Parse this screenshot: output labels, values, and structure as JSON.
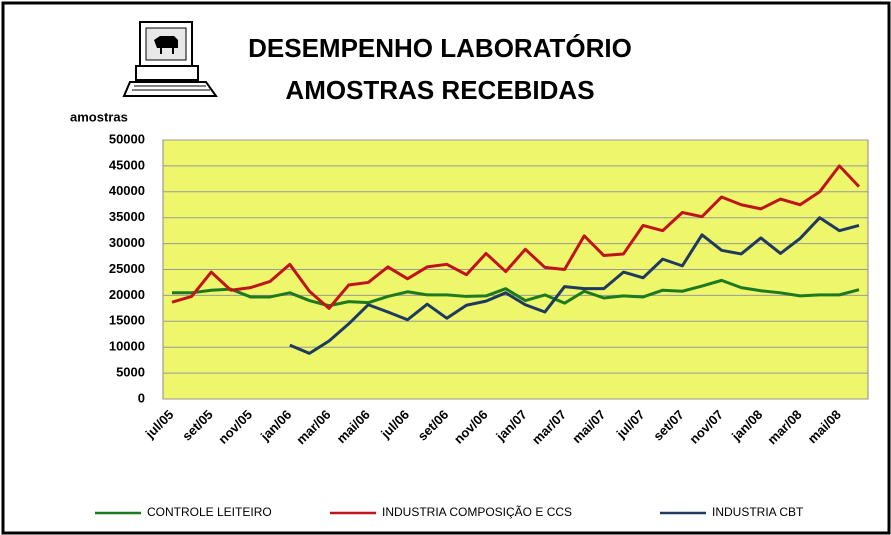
{
  "chart_data": {
    "type": "line",
    "title": "DESEMPENHO LABORATÓRIO",
    "subtitle": "AMOSTRAS RECEBIDAS",
    "y_label": "amostras",
    "categories": [
      "jul/05",
      null,
      "set/05",
      null,
      "nov/05",
      null,
      "jan/06",
      null,
      "mar/06",
      null,
      "mai/06",
      null,
      "jul/06",
      null,
      "set/06",
      null,
      "nov/06",
      null,
      "jan/07",
      null,
      "mar/07",
      null,
      "mai/07",
      null,
      "jul/07",
      null,
      "set/07",
      null,
      "nov/07",
      null,
      "jan/08",
      null,
      "mar/08",
      null,
      "mai/08",
      null
    ],
    "series": [
      {
        "name": "CONTROLE LEITEIRO",
        "color": "#1e7a1e",
        "values": [
          20500,
          20500,
          21000,
          21200,
          19700,
          19700,
          20500,
          19000,
          18000,
          18800,
          18600,
          19800,
          20700,
          20100,
          20100,
          19800,
          19900,
          21300,
          19000,
          20100,
          18500,
          20800,
          19500,
          19900,
          19700,
          21000,
          20800,
          21800,
          22900,
          21500,
          20900,
          20500,
          19900,
          20100,
          20100,
          21100
        ]
      },
      {
        "name": "INDUSTRIA COMPOSIÇÃO E CCS",
        "color": "#c0141c",
        "values": [
          18700,
          19800,
          24500,
          21000,
          21500,
          22700,
          26000,
          20800,
          17500,
          22000,
          22500,
          25500,
          23200,
          25500,
          26000,
          24000,
          28100,
          24600,
          28900,
          25400,
          25000,
          31500,
          27700,
          28000,
          33500,
          32500,
          36000,
          35200,
          39000,
          37500,
          36700,
          38600,
          37500,
          40000,
          45000,
          41000
        ]
      },
      {
        "name": "INDUSTRIA CBT",
        "color": "#1f3a60",
        "values": [
          null,
          null,
          null,
          null,
          null,
          null,
          10400,
          8800,
          11200,
          14500,
          18200,
          16800,
          15300,
          18300,
          15600,
          18100,
          18900,
          20500,
          18200,
          16800,
          21700,
          21300,
          21300,
          24500,
          23400,
          27000,
          25700,
          31700,
          28700,
          28000,
          31100,
          28100,
          31000,
          35000,
          32500,
          33500
        ]
      }
    ],
    "ylim": [
      0,
      50000
    ],
    "yticks": [
      0,
      5000,
      10000,
      15000,
      20000,
      25000,
      30000,
      35000,
      40000,
      45000,
      50000
    ],
    "grid": true,
    "plot_color": "#eef66c"
  }
}
